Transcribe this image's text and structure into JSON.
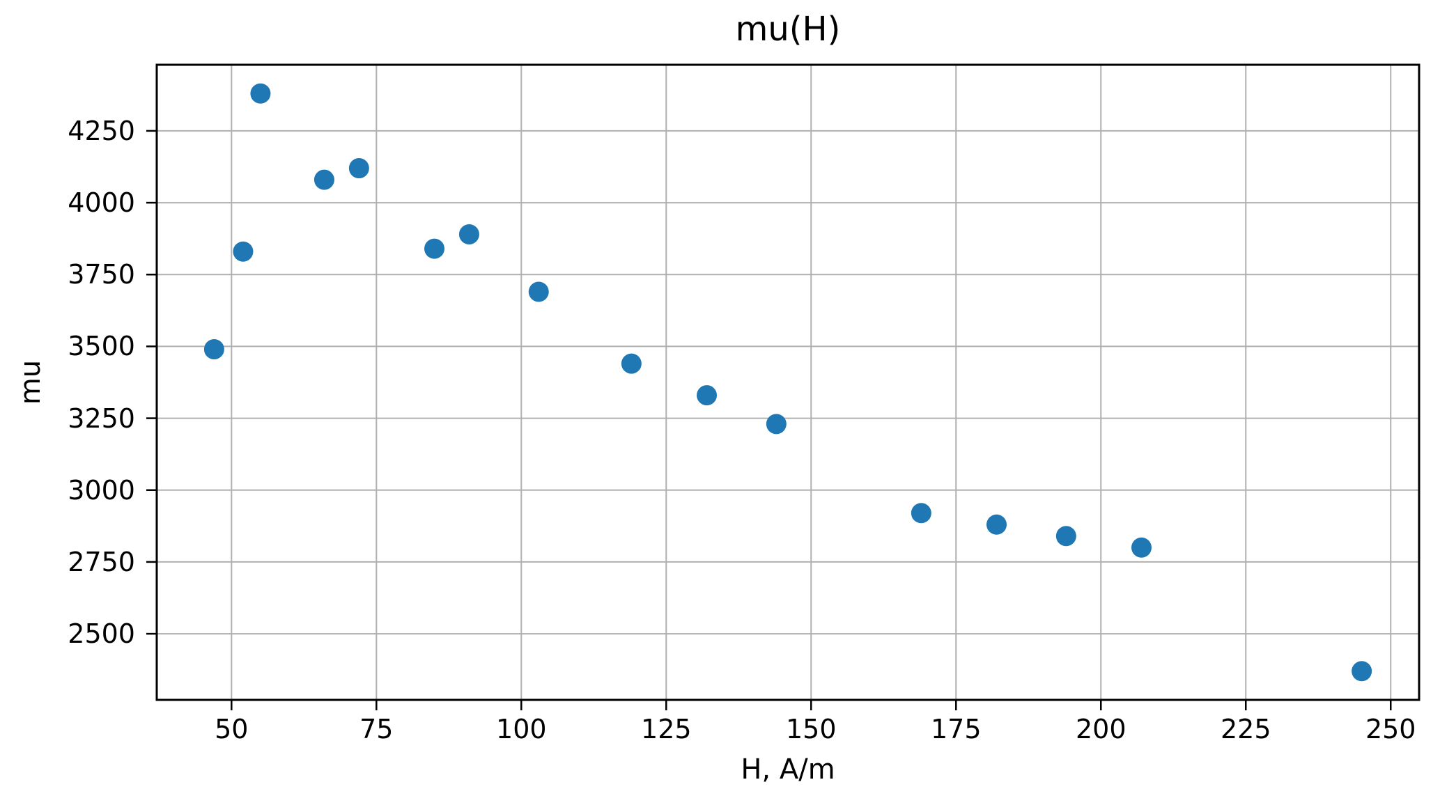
{
  "chart_data": {
    "type": "scatter",
    "title": "mu(H)",
    "xlabel": "H, A/m",
    "ylabel": "mu",
    "points": [
      {
        "x": 47,
        "y": 3490
      },
      {
        "x": 52,
        "y": 3830
      },
      {
        "x": 55,
        "y": 4380
      },
      {
        "x": 66,
        "y": 4080
      },
      {
        "x": 72,
        "y": 4120
      },
      {
        "x": 85,
        "y": 3840
      },
      {
        "x": 91,
        "y": 3890
      },
      {
        "x": 103,
        "y": 3690
      },
      {
        "x": 119,
        "y": 3440
      },
      {
        "x": 132,
        "y": 3330
      },
      {
        "x": 144,
        "y": 3230
      },
      {
        "x": 169,
        "y": 2920
      },
      {
        "x": 182,
        "y": 2880
      },
      {
        "x": 194,
        "y": 2840
      },
      {
        "x": 207,
        "y": 2800
      },
      {
        "x": 245,
        "y": 2370
      }
    ],
    "x_ticks": [
      50,
      75,
      100,
      125,
      150,
      175,
      200,
      225,
      250
    ],
    "y_ticks": [
      2500,
      2750,
      3000,
      3250,
      3500,
      3750,
      4000,
      4250
    ],
    "xlim": [
      37.1,
      254.9
    ],
    "ylim": [
      2270,
      4480
    ],
    "grid": true,
    "legend": "none",
    "marker_color": "#1f77b4",
    "grid_color": "#b0b0b0",
    "axis_color": "#000000",
    "background_color": "#ffffff"
  }
}
